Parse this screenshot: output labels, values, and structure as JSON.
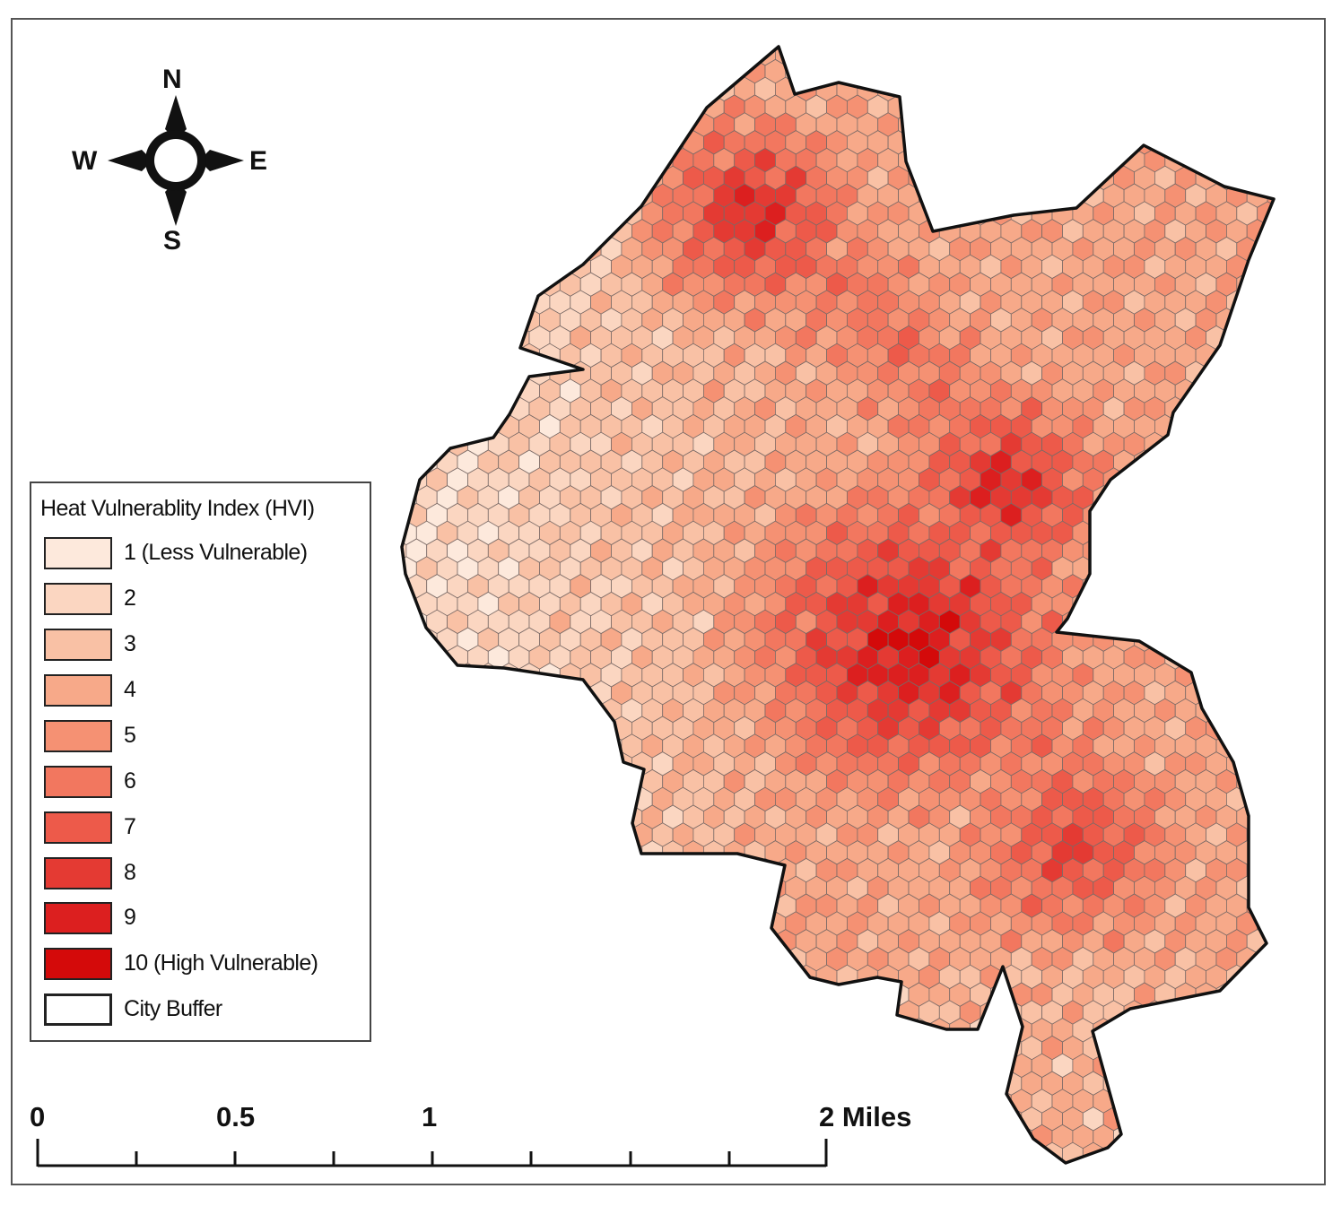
{
  "legend": {
    "title": "Heat Vulnerablity Index (HVI)",
    "items": [
      {
        "label": "1 (Less Vulnerable)",
        "color": "#fde9dc"
      },
      {
        "label": "2",
        "color": "#fbd6c1"
      },
      {
        "label": "3",
        "color": "#f9c1a5"
      },
      {
        "label": "4",
        "color": "#f7a989"
      },
      {
        "label": "5",
        "color": "#f59173"
      },
      {
        "label": "6",
        "color": "#f2775f"
      },
      {
        "label": "7",
        "color": "#ed5a4a"
      },
      {
        "label": "8",
        "color": "#e43a33"
      },
      {
        "label": "9",
        "color": "#dc1f1f"
      },
      {
        "label": "10 (High Vulnerable)",
        "color": "#d40a0a"
      }
    ],
    "buffer_label": "City Buffer"
  },
  "compass": {
    "north": "N",
    "south": "S",
    "east": "E",
    "west": "W"
  },
  "scale_bar": {
    "labels": {
      "zero": "0",
      "half": "0.5",
      "one": "1",
      "two": "2 Miles"
    }
  },
  "map": {
    "hotspots": [
      {
        "name": "north-cluster",
        "value": 9
      },
      {
        "name": "central-core",
        "value": 10
      },
      {
        "name": "east-band",
        "value": 9
      },
      {
        "name": "south-east",
        "value": 8
      }
    ]
  }
}
